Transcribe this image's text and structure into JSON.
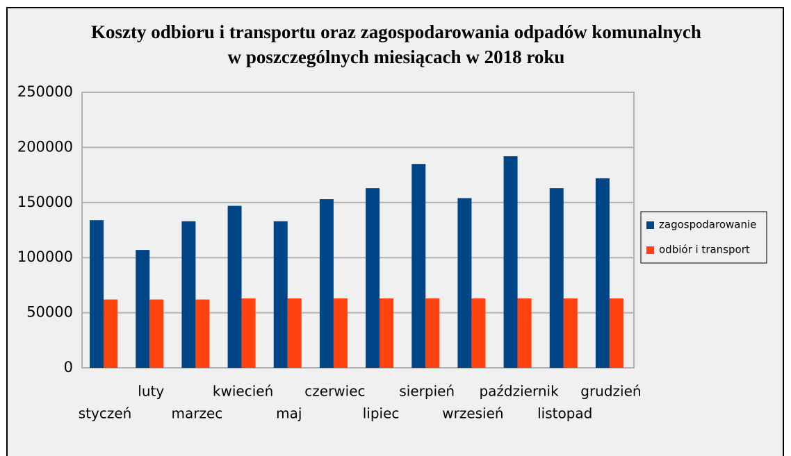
{
  "chart_data": {
    "type": "bar",
    "title": "Koszty odbioru i transportu oraz zagospodarowania odpadów komunalnych\nw poszczególnych miesiącach w 2018 roku",
    "categories": [
      "styczeń",
      "luty",
      "marzec",
      "kwiecień",
      "maj",
      "czerwiec",
      "lipiec",
      "sierpień",
      "wrzesień",
      "październik",
      "listopad",
      "grudzień"
    ],
    "series": [
      {
        "name": "zagospodarowanie",
        "color": "#004586",
        "values": [
          134000,
          107000,
          133000,
          147000,
          133000,
          153000,
          163000,
          185000,
          154000,
          192000,
          163000,
          172000
        ]
      },
      {
        "name": "odbiór i transport",
        "color": "#ff420e",
        "values": [
          62000,
          62000,
          62000,
          63000,
          63000,
          63000,
          63000,
          63000,
          63000,
          63000,
          63000,
          63000
        ]
      }
    ],
    "ylim": [
      0,
      250000
    ],
    "yticks": [
      0,
      50000,
      100000,
      150000,
      200000,
      250000
    ],
    "grid": true,
    "legend": "right"
  }
}
